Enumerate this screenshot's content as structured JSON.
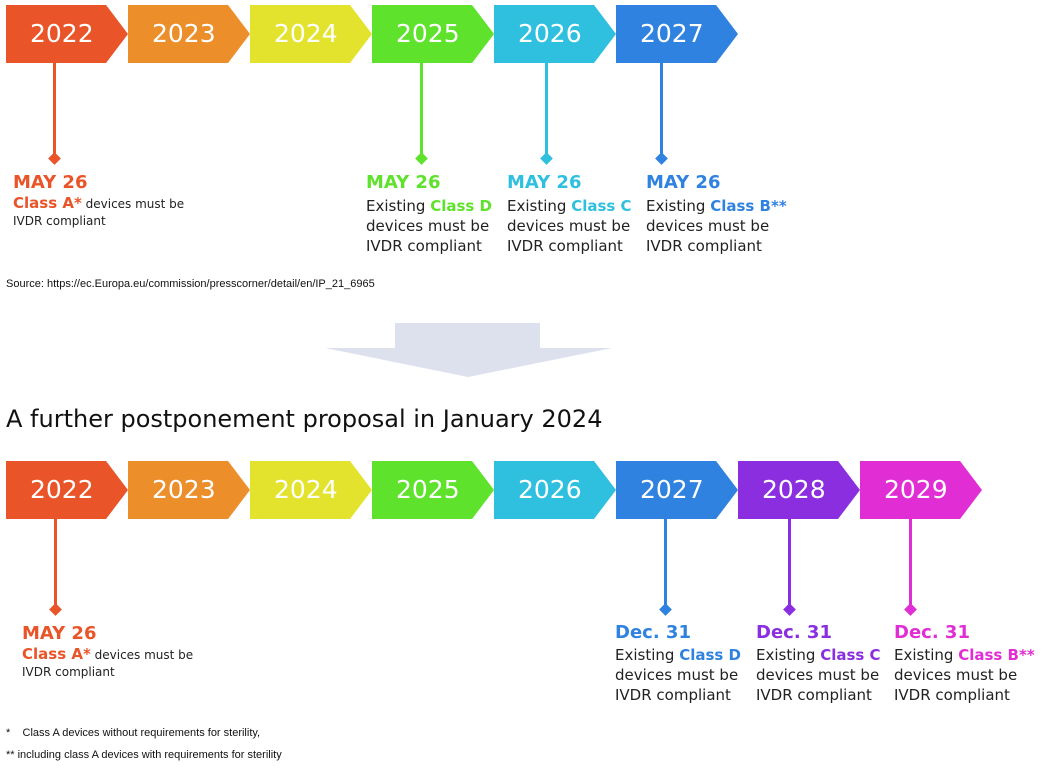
{
  "timeline_1": {
    "years": [
      {
        "label": "2022",
        "color": "#e95428"
      },
      {
        "label": "2023",
        "color": "#ec8e2a"
      },
      {
        "label": "2024",
        "color": "#e3e32e"
      },
      {
        "label": "2025",
        "color": "#5ee22c"
      },
      {
        "label": "2026",
        "color": "#2fc0e0"
      },
      {
        "label": "2027",
        "color": "#2f82e0"
      }
    ],
    "milestones": [
      {
        "date": "MAY 26",
        "prefix": "",
        "class_label": "Class A*",
        "suffix": " devices must be",
        "line3": "IVDR compliant",
        "color": "#e95428"
      },
      {
        "date": "MAY 26",
        "prefix": "Existing ",
        "class_label": "Class D",
        "suffix": "devices must be",
        "line3": "IVDR compliant",
        "color": "#5ee22c"
      },
      {
        "date": "MAY 26",
        "prefix": "Existing ",
        "class_label": "Class C",
        "suffix": "devices must be",
        "line3": "IVDR compliant",
        "color": "#2fc0e0"
      },
      {
        "date": "MAY 26",
        "prefix": "Existing ",
        "class_label": "Class B**",
        "suffix": "devices must be",
        "line3": "IVDR compliant",
        "color": "#2f82e0"
      }
    ]
  },
  "source": "Source: https://ec.Europa.eu/commission/presscorner/detail/en/IP_21_6965",
  "proposal_title": "A further postponement proposal in January 2024",
  "timeline_2": {
    "years": [
      {
        "label": "2022",
        "color": "#e95428"
      },
      {
        "label": "2023",
        "color": "#ec8e2a"
      },
      {
        "label": "2024",
        "color": "#e3e32e"
      },
      {
        "label": "2025",
        "color": "#5ee22c"
      },
      {
        "label": "2026",
        "color": "#2fc0e0"
      },
      {
        "label": "2027",
        "color": "#2f82e0"
      },
      {
        "label": "2028",
        "color": "#8a2ee0"
      },
      {
        "label": "2029",
        "color": "#e02ed4"
      }
    ],
    "milestones": [
      {
        "date": "MAY 26",
        "prefix": "",
        "class_label": "Class A*",
        "suffix": " devices must be",
        "line3": "IVDR compliant",
        "color": "#e95428"
      },
      {
        "date": "Dec. 31",
        "prefix": "Existing ",
        "class_label": "Class D",
        "suffix": "devices must be",
        "line3": "IVDR compliant",
        "color": "#2f82e0"
      },
      {
        "date": "Dec. 31",
        "prefix": "Existing ",
        "class_label": "Class C",
        "suffix": "devices must be",
        "line3": "IVDR compliant",
        "color": "#8a2ee0"
      },
      {
        "date": "Dec. 31",
        "prefix": "Existing ",
        "class_label": "Class B**",
        "suffix": "devices must be",
        "line3": "IVDR compliant",
        "color": "#e02ed4"
      }
    ]
  },
  "footnotes": [
    "*    Class A devices without requirements for sterility,",
    "** including class A devices with requirements for sterility"
  ],
  "arrow_color": "#dde1ee"
}
